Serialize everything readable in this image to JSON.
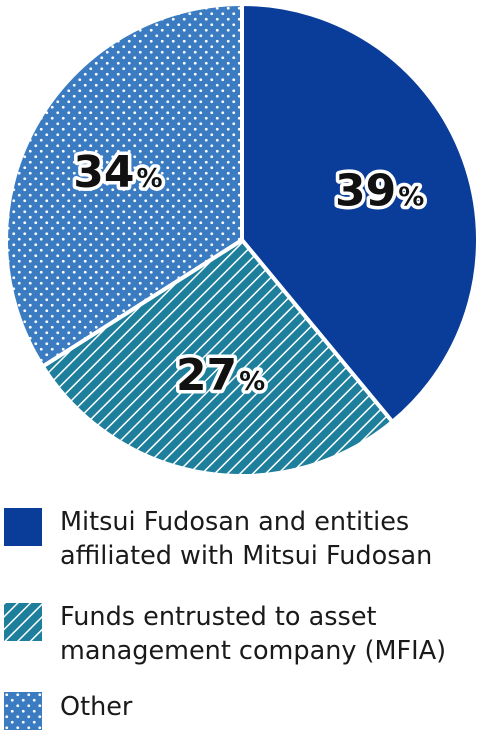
{
  "chart_data": {
    "type": "pie",
    "slices": [
      {
        "label": "Mitsui Fudosan and entities affiliated with Mitsui Fudosan",
        "value": 39,
        "display": "39",
        "color": "#0a3d99",
        "pattern": "solid"
      },
      {
        "label": "Funds entrusted to asset management company (MFIA)",
        "value": 27,
        "display": "27",
        "color": "#1e7f9c",
        "pattern": "stripes"
      },
      {
        "label": "Other",
        "value": 34,
        "display": "34",
        "color": "#3a7bc2",
        "pattern": "dots"
      }
    ],
    "unit": "%",
    "start_angle_deg": 0,
    "direction": "clockwise",
    "legend_position": "bottom"
  },
  "legend": {
    "items": [
      {
        "line1": "Mitsui Fudosan and entities",
        "line2": "affiliated with Mitsui Fudosan"
      },
      {
        "line1": "Funds entrusted to asset",
        "line2": "management company (MFIA)"
      },
      {
        "line1": "Other",
        "line2": ""
      }
    ]
  }
}
